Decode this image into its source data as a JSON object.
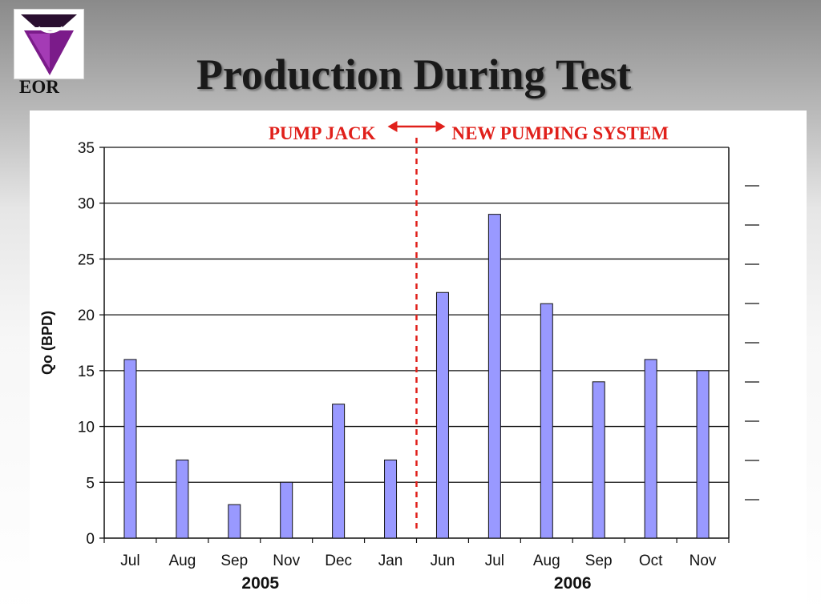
{
  "slide": {
    "title": "Production During Test",
    "logo_text": "EOR",
    "logo_colors": {
      "primary": "#7b1b8a",
      "accent": "#a43bb5",
      "frame": "#2a0f30"
    }
  },
  "chart_data": {
    "type": "bar",
    "categories": [
      "Jul",
      "Aug",
      "Sep",
      "Nov",
      "Dec",
      "Jan",
      "Jun",
      "Jul",
      "Aug",
      "Sep",
      "Oct",
      "Nov"
    ],
    "values": [
      16,
      7,
      3,
      5,
      12,
      7,
      22,
      29,
      21,
      14,
      16,
      15
    ],
    "ylabel": "Qo (BPD)",
    "xlabel": "",
    "ylim": [
      0,
      35
    ],
    "yticks": [
      0,
      5,
      10,
      15,
      20,
      25,
      30,
      35
    ],
    "grid": true,
    "bar_color": "#9999ff",
    "year_groups": [
      {
        "label": "2005",
        "start": 0,
        "end": 5
      },
      {
        "label": "2006",
        "start": 6,
        "end": 11
      }
    ],
    "divider": {
      "after_index": 5,
      "color": "#e0201b"
    },
    "annotations": {
      "left": "PUMP JACK",
      "right": "NEW PUMPING SYSTEM",
      "color": "#e0201b"
    }
  }
}
